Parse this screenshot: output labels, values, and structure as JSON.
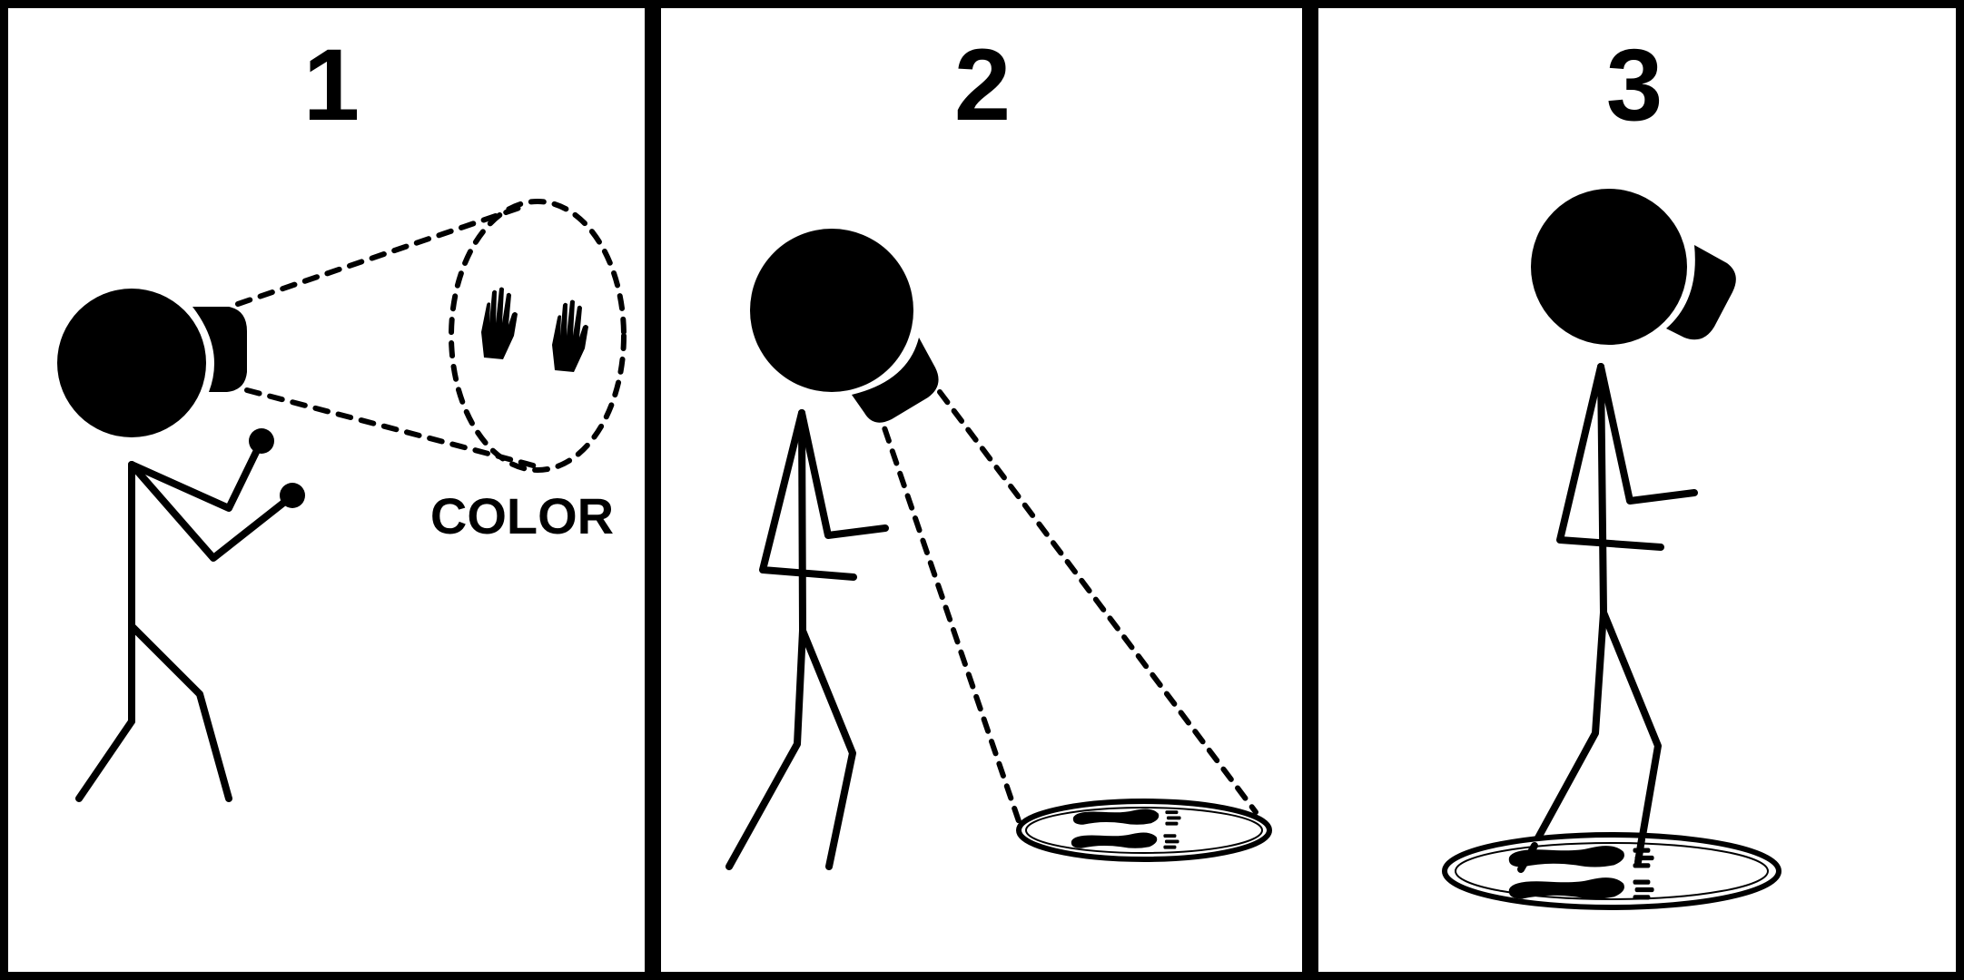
{
  "panels": [
    {
      "number": "1",
      "label": "COLOR"
    },
    {
      "number": "2"
    },
    {
      "number": "3"
    }
  ],
  "colors": {
    "ink": "#000000",
    "paper": "#ffffff"
  },
  "icons": [
    "hand-icon",
    "footprint-icon"
  ]
}
